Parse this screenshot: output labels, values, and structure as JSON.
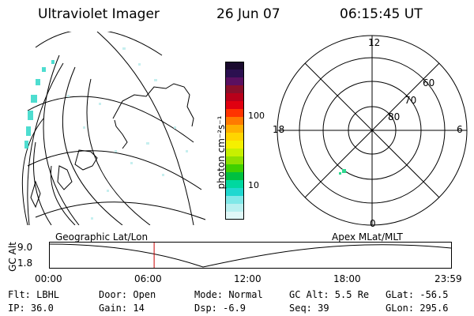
{
  "header": {
    "instrument": "Ultraviolet Imager",
    "date": "26 Jun 07",
    "time": "06:15:45 UT"
  },
  "colorbar": {
    "unit_label": "photon cm⁻²s⁻¹",
    "ticks": [
      "100",
      "10"
    ],
    "colors": [
      "#1a0a2e",
      "#2b1050",
      "#5a1060",
      "#8a0f2a",
      "#b8001a",
      "#e00010",
      "#ff3300",
      "#ff7a00",
      "#ffb000",
      "#ffd500",
      "#f5f000",
      "#c8f000",
      "#90e000",
      "#40d000",
      "#00c040",
      "#00d8a0",
      "#20d8d0",
      "#80e8e8",
      "#b8f0f0",
      "#e0f8f8"
    ]
  },
  "polar_plot": {
    "mlt_labels": {
      "top": "12",
      "bottom": "0",
      "left": "18",
      "right": "6"
    },
    "lat_labels": [
      "60",
      "70",
      "80"
    ]
  },
  "timeline": {
    "title_left": "Geographic Lat/Lon",
    "title_right": "Apex MLat/MLT",
    "y_axis_label": "GC Alt",
    "y_ticks": [
      "9.0",
      "1.8"
    ],
    "x_ticks": [
      "00:00",
      "06:00",
      "12:00",
      "18:00",
      "23:59"
    ],
    "current_time_fraction": 0.261,
    "marker_color": "#cc0000"
  },
  "status": {
    "filter": "Flt: LBHL",
    "ip": "IP: 36.0",
    "door": "Door: Open",
    "gain": "Gain: 14",
    "mode": "Mode: Normal",
    "dsp": "Dsp:    -6.9",
    "gc_alt": "GC Alt: 5.5 Re",
    "seq": "Seq: 39",
    "glat": "GLat: -56.5",
    "glon": "GLon: 295.6"
  }
}
